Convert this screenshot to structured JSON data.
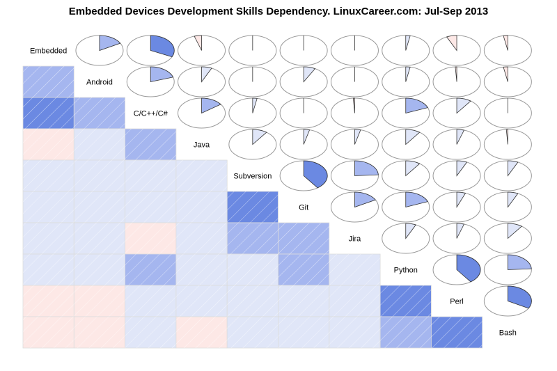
{
  "chart_data": {
    "type": "heatmap",
    "title": "Embedded Devices Development Skills Dependency. LinuxCareer.com: Jul-Sep 2013",
    "variables": [
      "Embedded",
      "Android",
      "C/C++/C#",
      "Java",
      "Subversion",
      "Git",
      "Jira",
      "Python",
      "Perl",
      "Bash"
    ],
    "upper_panel": "pie",
    "lower_panel": "shade",
    "matrix": [
      [
        1,
        0.17,
        0.32,
        -0.05,
        0.0,
        0.0,
        0.0,
        0.03,
        -0.07,
        -0.03
      ],
      [
        0.17,
        1,
        0.2,
        0.07,
        0.0,
        0.08,
        0.0,
        0.03,
        -0.01,
        -0.03
      ],
      [
        0.32,
        0.2,
        1,
        0.15,
        0.03,
        0.0,
        -0.01,
        0.19,
        0.1,
        0.0
      ],
      [
        -0.05,
        0.07,
        0.15,
        1,
        0.1,
        0.04,
        0.04,
        0.1,
        0.05,
        -0.01
      ],
      [
        0.0,
        0.0,
        0.03,
        0.1,
        1,
        0.4,
        0.24,
        0.1,
        0.07,
        0.07
      ],
      [
        0.0,
        0.08,
        0.0,
        0.04,
        0.4,
        1,
        0.17,
        0.19,
        0.06,
        0.07
      ],
      [
        0.0,
        0.0,
        -0.01,
        0.04,
        0.24,
        0.17,
        1,
        0.07,
        0.05,
        0.1
      ],
      [
        0.03,
        0.03,
        0.19,
        0.1,
        0.1,
        0.19,
        0.07,
        1,
        0.4,
        0.24
      ],
      [
        -0.07,
        -0.01,
        0.1,
        0.05,
        0.07,
        0.06,
        0.05,
        0.4,
        1,
        0.33
      ],
      [
        -0.03,
        -0.03,
        0.0,
        -0.01,
        0.07,
        0.07,
        0.1,
        0.24,
        0.33,
        1
      ]
    ]
  },
  "colors": {
    "strong": "#6b89e2",
    "medium": "#a5b6ef",
    "weak": "#e0e6f8",
    "negative": "#fde8e6"
  }
}
